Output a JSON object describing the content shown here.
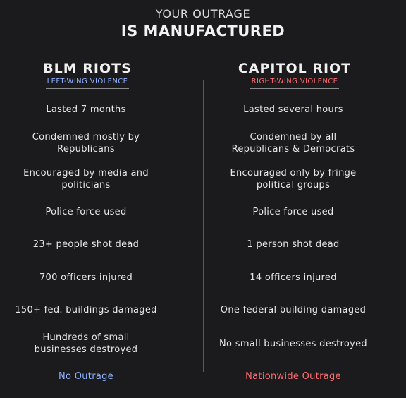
{
  "title": {
    "line1": "YOUR OUTRAGE",
    "line2": "IS MANUFACTURED"
  },
  "left": {
    "heading": "BLM RIOTS",
    "subheading": "LEFT-WING VIOLENCE",
    "rows": [
      "Lasted 7 months",
      "Condemned mostly by\nRepublicans",
      "Encouraged by media and\npoliticians",
      "Police force used",
      "23+ people shot dead",
      "700 officers injured",
      "150+ fed. buildings damaged",
      "Hundreds of small\nbusinesses destroyed"
    ],
    "outrage": "No Outrage"
  },
  "right": {
    "heading": "CAPITOL RIOT",
    "subheading": "RIGHT-WING VIOLENCE",
    "rows": [
      "Lasted several hours",
      "Condemned by all\nRepublicans & Democrats",
      "Encouraged only by fringe\npolitical groups",
      "Police force used",
      "1 person shot dead",
      "14 officers injured",
      "One federal building damaged",
      "No small businesses destroyed"
    ],
    "outrage": "Nationwide Outrage"
  },
  "colors": {
    "background": "#1b1b1d",
    "left_accent": "#8fb2ff",
    "right_accent": "#ff6b73"
  }
}
